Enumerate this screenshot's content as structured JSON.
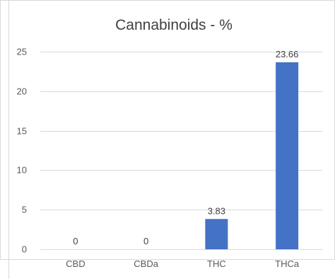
{
  "chart_data": {
    "type": "bar",
    "title": "Cannabinoids -  %",
    "categories": [
      "CBD",
      "CBDa",
      "THC",
      "THCa"
    ],
    "values": [
      0,
      0,
      3.83,
      23.66
    ],
    "data_labels": [
      "0",
      "0",
      "3.83",
      "23.66"
    ],
    "ylim": [
      0,
      25
    ],
    "yticks": [
      "0",
      "5",
      "10",
      "15",
      "20",
      "25"
    ],
    "grid": true,
    "legend": "none",
    "bar_color": "#4472C4",
    "grid_color": "#D9D9D9"
  }
}
